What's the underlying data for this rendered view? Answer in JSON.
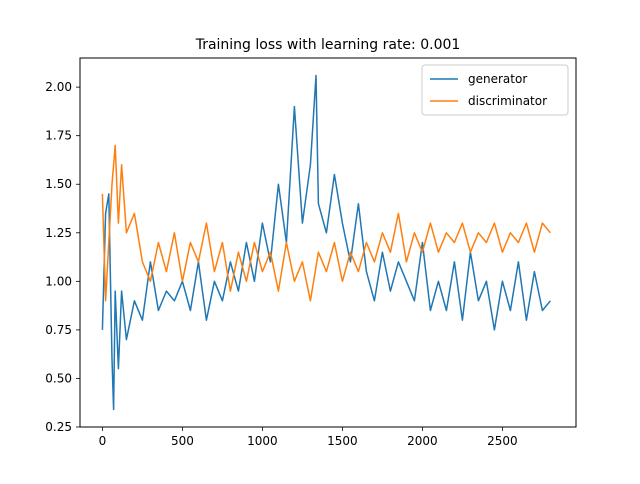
{
  "chart_data": {
    "type": "line",
    "title": "Training loss with learning rate: 0.001",
    "xlabel": "",
    "ylabel": "",
    "xlim": [
      -140,
      2960
    ],
    "ylim": [
      0.25,
      2.15
    ],
    "xticks": [
      0,
      500,
      1000,
      1500,
      2000,
      2500
    ],
    "xtick_labels": [
      "0",
      "500",
      "1000",
      "1500",
      "2000",
      "2500"
    ],
    "yticks": [
      0.25,
      0.5,
      0.75,
      1.0,
      1.25,
      1.5,
      1.75,
      2.0
    ],
    "ytick_labels": [
      "0.25",
      "0.50",
      "0.75",
      "1.00",
      "1.25",
      "1.50",
      "1.75",
      "2.00"
    ],
    "grid": false,
    "legend_position": "top-right",
    "series": [
      {
        "name": "generator",
        "color": "#1f77b4",
        "x": [
          0,
          20,
          40,
          60,
          70,
          80,
          100,
          120,
          150,
          200,
          250,
          300,
          350,
          400,
          450,
          500,
          550,
          600,
          650,
          700,
          750,
          800,
          850,
          900,
          950,
          1000,
          1050,
          1100,
          1150,
          1200,
          1250,
          1300,
          1335,
          1350,
          1400,
          1450,
          1500,
          1550,
          1600,
          1650,
          1700,
          1750,
          1800,
          1850,
          1900,
          1950,
          2000,
          2050,
          2100,
          2150,
          2200,
          2250,
          2300,
          2350,
          2400,
          2450,
          2500,
          2550,
          2600,
          2650,
          2700,
          2750,
          2800
        ],
        "values": [
          0.75,
          1.35,
          1.45,
          0.6,
          0.34,
          0.95,
          0.55,
          0.95,
          0.7,
          0.9,
          0.8,
          1.1,
          0.85,
          0.95,
          0.9,
          1.0,
          0.85,
          1.1,
          0.8,
          1.0,
          0.9,
          1.1,
          0.95,
          1.2,
          1.0,
          1.3,
          1.1,
          1.5,
          1.2,
          1.9,
          1.3,
          1.6,
          2.06,
          1.4,
          1.25,
          1.55,
          1.3,
          1.1,
          1.4,
          1.05,
          0.9,
          1.15,
          0.95,
          1.1,
          1.0,
          0.9,
          1.2,
          0.85,
          1.0,
          0.85,
          1.1,
          0.8,
          1.15,
          0.9,
          1.0,
          0.75,
          1.0,
          0.85,
          1.1,
          0.8,
          1.05,
          0.85,
          0.9
        ]
      },
      {
        "name": "discriminator",
        "color": "#ff7f0e",
        "x": [
          0,
          20,
          40,
          60,
          80,
          100,
          120,
          150,
          200,
          250,
          300,
          350,
          400,
          450,
          500,
          550,
          600,
          650,
          700,
          750,
          800,
          850,
          900,
          950,
          1000,
          1050,
          1100,
          1150,
          1200,
          1250,
          1300,
          1350,
          1400,
          1450,
          1500,
          1550,
          1600,
          1650,
          1700,
          1750,
          1800,
          1850,
          1900,
          1950,
          2000,
          2050,
          2100,
          2150,
          2200,
          2250,
          2300,
          2350,
          2400,
          2450,
          2500,
          2550,
          2600,
          2650,
          2700,
          2750,
          2800
        ],
        "values": [
          1.45,
          0.9,
          1.2,
          1.5,
          1.7,
          1.3,
          1.6,
          1.25,
          1.35,
          1.1,
          1.0,
          1.2,
          1.05,
          1.25,
          1.0,
          1.2,
          1.1,
          1.3,
          1.05,
          1.2,
          0.95,
          1.15,
          1.0,
          1.2,
          1.05,
          1.15,
          0.95,
          1.2,
          1.0,
          1.1,
          0.9,
          1.15,
          1.05,
          1.2,
          1.0,
          1.15,
          1.05,
          1.2,
          1.1,
          1.25,
          1.15,
          1.35,
          1.1,
          1.25,
          1.15,
          1.3,
          1.15,
          1.25,
          1.2,
          1.3,
          1.15,
          1.25,
          1.2,
          1.3,
          1.15,
          1.25,
          1.2,
          1.3,
          1.15,
          1.3,
          1.25
        ]
      }
    ]
  }
}
